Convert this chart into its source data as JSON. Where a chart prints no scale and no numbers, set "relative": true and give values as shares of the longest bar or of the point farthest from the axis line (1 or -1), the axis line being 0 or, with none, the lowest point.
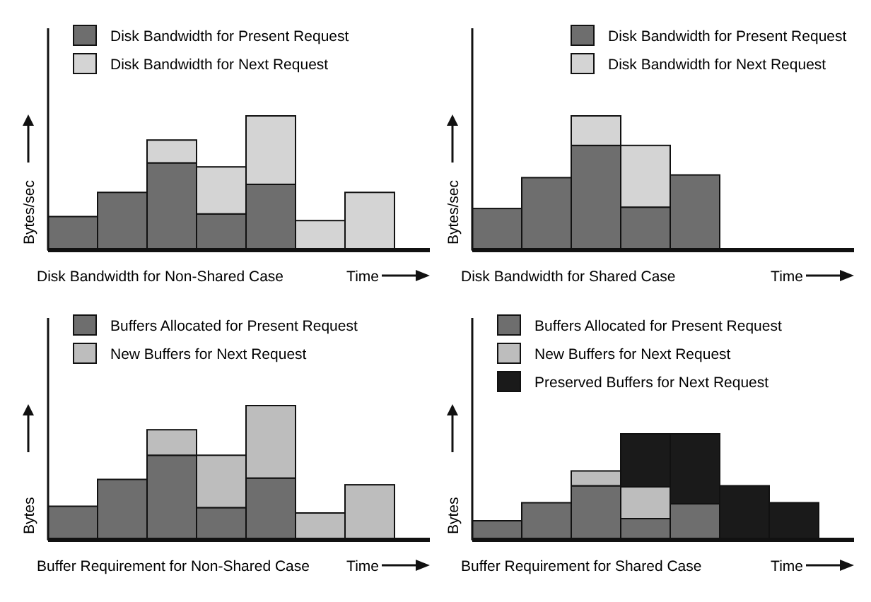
{
  "chart_data": [
    {
      "type": "bar",
      "title": "Disk Bandwidth for Non-Shared Case",
      "xlabel": "Time",
      "ylabel": "Bytes/sec",
      "relative": true,
      "stacked": true,
      "legend": "top left",
      "categories": [
        null,
        null,
        null,
        null,
        null,
        null,
        null
      ],
      "series": [
        {
          "name": "Disk Bandwidth for Present Request",
          "color": "#6e6e6e",
          "values": [
            0.25,
            0.43,
            0.65,
            0.27,
            0.49,
            null,
            null
          ]
        },
        {
          "name": "Disk Bandwidth for Next Request",
          "color": "#d4d4d4",
          "values": [
            null,
            null,
            0.17,
            0.35,
            0.51,
            0.22,
            0.43
          ]
        }
      ]
    },
    {
      "type": "bar",
      "title": "Disk Bandwidth for Shared Case",
      "xlabel": "Time",
      "ylabel": "Bytes/sec",
      "relative": true,
      "stacked": true,
      "legend": "top right",
      "categories": [
        null,
        null,
        null,
        null,
        null
      ],
      "series": [
        {
          "name": "Disk Bandwidth for Present Request",
          "color": "#6e6e6e",
          "values": [
            0.31,
            0.54,
            0.78,
            0.32,
            0.56
          ]
        },
        {
          "name": "Disk Bandwidth for Next Request",
          "color": "#d4d4d4",
          "values": [
            null,
            null,
            0.22,
            0.46,
            null
          ]
        }
      ]
    },
    {
      "type": "bar",
      "title": "Buffer Requirement for Non-Shared Case",
      "xlabel": "Time",
      "ylabel": "Bytes",
      "relative": true,
      "stacked": true,
      "legend": "top left",
      "categories": [
        null,
        null,
        null,
        null,
        null,
        null,
        null
      ],
      "series": [
        {
          "name": "Buffers Allocated for Present Request",
          "color": "#6e6e6e",
          "values": [
            0.25,
            0.45,
            0.63,
            0.24,
            0.46,
            null,
            null
          ]
        },
        {
          "name": "New Buffers for Next Request",
          "color": "#bdbdbd",
          "values": [
            null,
            null,
            0.19,
            0.39,
            0.54,
            0.2,
            0.41
          ]
        }
      ]
    },
    {
      "type": "bar",
      "title": "Buffer Requirement for Shared Case",
      "xlabel": "Time",
      "ylabel": "Bytes",
      "relative": true,
      "stacked": true,
      "legend": "top left",
      "categories": [
        null,
        null,
        null,
        null,
        null,
        null,
        null
      ],
      "series": [
        {
          "name": "Buffers Allocated for Present Request",
          "color": "#6e6e6e",
          "values": [
            0.18,
            0.35,
            0.51,
            0.2,
            0.34,
            null,
            null
          ]
        },
        {
          "name": "New Buffers for Next Request",
          "color": "#bdbdbd",
          "values": [
            null,
            null,
            0.14,
            0.3,
            null,
            null,
            null
          ]
        },
        {
          "name": "Preserved Buffers for Next Request",
          "color": "#1a1a1a",
          "values": [
            null,
            null,
            null,
            0.5,
            0.66,
            0.51,
            0.35
          ]
        }
      ]
    }
  ]
}
